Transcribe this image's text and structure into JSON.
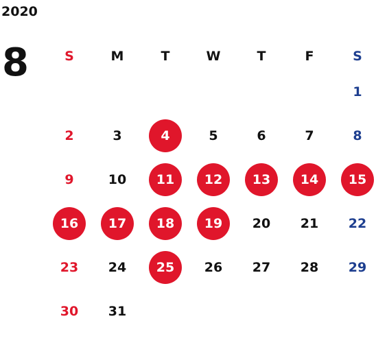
{
  "year": "2020",
  "month": "8",
  "colors": {
    "sunday": "#e0162b",
    "saturday": "#1d3e8f",
    "highlight": "#e0162b",
    "weekday": "#111111"
  },
  "weekdays": [
    "S",
    "M",
    "T",
    "W",
    "T",
    "F",
    "S"
  ],
  "weeks": [
    [
      "",
      "",
      "",
      "",
      "",
      "",
      "1"
    ],
    [
      "2",
      "3",
      "4",
      "5",
      "6",
      "7",
      "8"
    ],
    [
      "9",
      "10",
      "11",
      "12",
      "13",
      "14",
      "15"
    ],
    [
      "16",
      "17",
      "18",
      "19",
      "20",
      "21",
      "22"
    ],
    [
      "23",
      "24",
      "25",
      "26",
      "27",
      "28",
      "29"
    ],
    [
      "30",
      "31",
      "",
      "",
      "",
      "",
      ""
    ]
  ],
  "highlighted_days": [
    "4",
    "11",
    "12",
    "13",
    "14",
    "15",
    "16",
    "17",
    "18",
    "19",
    "25"
  ]
}
